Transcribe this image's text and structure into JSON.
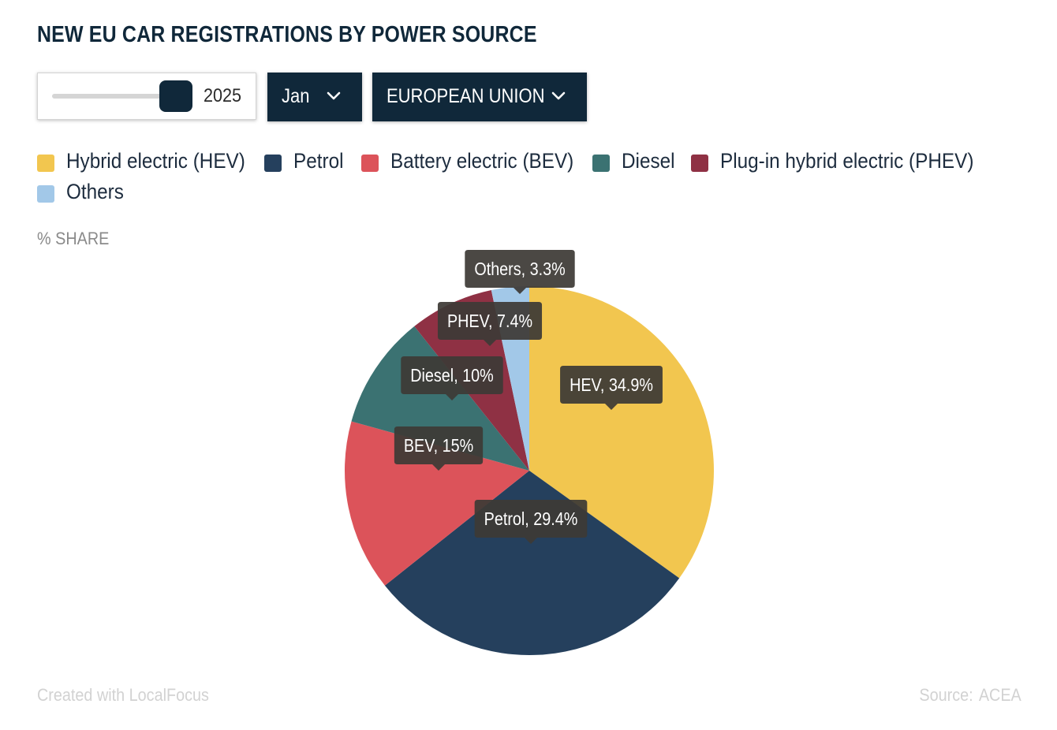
{
  "title": "NEW EU CAR REGISTRATIONS BY POWER SOURCE",
  "controls": {
    "year_slider": {
      "value": "2025"
    },
    "month_dropdown": {
      "selected": "Jan"
    },
    "region_dropdown": {
      "selected": "EUROPEAN UNION"
    }
  },
  "legend": {
    "items": [
      {
        "label": "Hybrid electric (HEV)",
        "color": "#f2c64f"
      },
      {
        "label": "Petrol",
        "color": "#25405d"
      },
      {
        "label": "Battery electric (BEV)",
        "color": "#dc535a"
      },
      {
        "label": "Diesel",
        "color": "#3b7272"
      },
      {
        "label": "Plug-in hybrid electric (PHEV)",
        "color": "#8f3144"
      },
      {
        "label": "Others",
        "color": "#a2c8e8"
      }
    ]
  },
  "unit_label": "% SHARE",
  "chart_data": {
    "type": "pie",
    "unit": "%",
    "slices": [
      {
        "name": "Hybrid electric (HEV)",
        "short": "HEV",
        "value": 34.9,
        "label": "HEV, 34.9%",
        "color": "#f2c64f"
      },
      {
        "name": "Petrol",
        "short": "Petrol",
        "value": 29.4,
        "label": "Petrol, 29.4%",
        "color": "#25405d"
      },
      {
        "name": "Battery electric (BEV)",
        "short": "BEV",
        "value": 15,
        "label": "BEV, 15%",
        "color": "#dc535a"
      },
      {
        "name": "Diesel",
        "short": "Diesel",
        "value": 10,
        "label": "Diesel, 10%",
        "color": "#3b7272"
      },
      {
        "name": "Plug-in hybrid electric (PHEV)",
        "short": "PHEV",
        "value": 7.4,
        "label": "PHEV, 7.4%",
        "color": "#8f3144"
      },
      {
        "name": "Others",
        "short": "Others",
        "value": 3.3,
        "label": "Others, 3.3%",
        "color": "#a2c8e8"
      }
    ],
    "start_angle": "12 o'clock",
    "direction": "clockwise",
    "legend_position": "top"
  },
  "footer": {
    "credit": "Created with LocalFocus",
    "source_label": "Source:",
    "source_value": "ACEA"
  }
}
